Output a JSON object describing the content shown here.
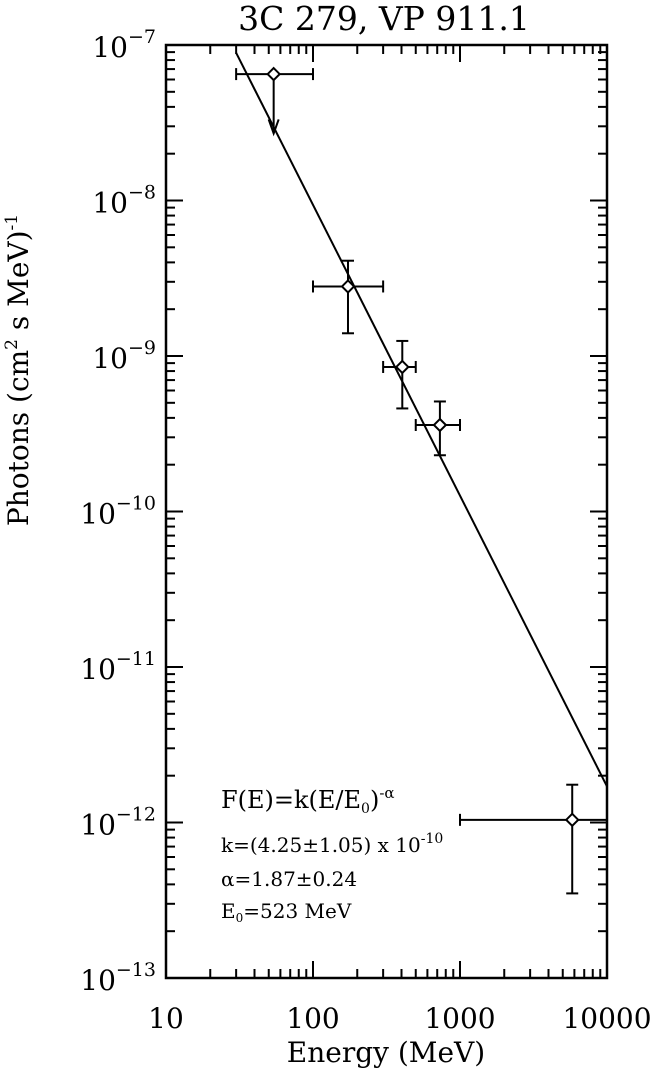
{
  "chart_data": {
    "type": "scatter",
    "title": "3C 279, VP 911.1",
    "xlabel": "Energy (MeV)",
    "ylabel": {
      "main": "Photons (cm",
      "sup1": "2",
      "mid": " s MeV)",
      "sup2": "-1"
    },
    "x_scale": "log",
    "y_scale": "log",
    "xlim": [
      10,
      10000
    ],
    "ylim": [
      1e-13,
      1e-07
    ],
    "x_tick_labels": [
      "10",
      "100",
      "1000",
      "10000"
    ],
    "y_tick_labels": [
      {
        "base": "10",
        "exp": "-7"
      },
      {
        "base": "10",
        "exp": "-8"
      },
      {
        "base": "10",
        "exp": "-9"
      },
      {
        "base": "10",
        "exp": "-10"
      },
      {
        "base": "10",
        "exp": "-11"
      },
      {
        "base": "10",
        "exp": "-12"
      },
      {
        "base": "10",
        "exp": "-13"
      }
    ],
    "points": [
      {
        "x": 54,
        "y": 6.5e-08,
        "xerr": [
          30,
          100
        ],
        "upper_limit": true,
        "arrow_to": 2.7e-08
      },
      {
        "x": 173,
        "y": 2.8e-09,
        "xerr": [
          100,
          300
        ],
        "yerr": [
          1.4e-09,
          4.1e-09
        ]
      },
      {
        "x": 405,
        "y": 8.5e-10,
        "xerr": [
          300,
          500
        ],
        "yerr": [
          4.6e-10,
          1.25e-09
        ]
      },
      {
        "x": 730,
        "y": 3.6e-10,
        "xerr": [
          500,
          1000
        ],
        "yerr": [
          2.3e-10,
          5.1e-10
        ]
      },
      {
        "x": 5800,
        "y": 1.04e-12,
        "xerr": [
          1000,
          10000
        ],
        "yerr": [
          3.5e-13,
          1.75e-12
        ]
      }
    ],
    "fit": {
      "k": 4.25e-10,
      "alpha": 1.87,
      "E0": 523,
      "x_range": [
        30,
        10000
      ]
    },
    "annotation": {
      "formula": {
        "pre": "F(E)=k(E/E",
        "sub": "0",
        "mid": ")",
        "sup": "-α"
      },
      "k_line": {
        "text": "k=(4.25±1.05) x 10",
        "sup": "-10"
      },
      "alpha_line": "α=1.87±0.24",
      "e0_line": {
        "pre": "E",
        "sub": "0",
        "post": "=523 MeV"
      }
    }
  }
}
